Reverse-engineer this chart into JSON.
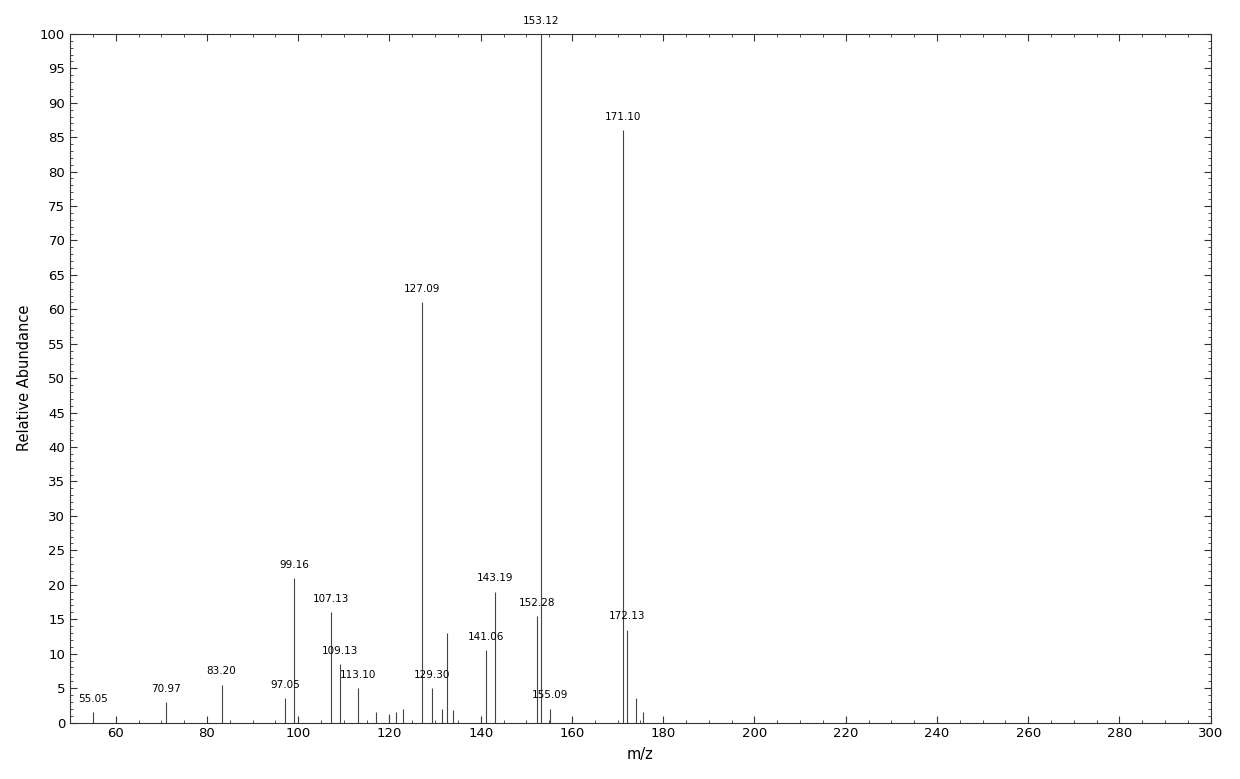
{
  "peaks": [
    {
      "mz": 55.05,
      "intensity": 1.5
    },
    {
      "mz": 70.97,
      "intensity": 3.0
    },
    {
      "mz": 83.2,
      "intensity": 5.5
    },
    {
      "mz": 97.05,
      "intensity": 3.5
    },
    {
      "mz": 99.16,
      "intensity": 21.0
    },
    {
      "mz": 107.13,
      "intensity": 16.0
    },
    {
      "mz": 109.13,
      "intensity": 8.5
    },
    {
      "mz": 113.1,
      "intensity": 5.0
    },
    {
      "mz": 117.0,
      "intensity": 1.5
    },
    {
      "mz": 120.0,
      "intensity": 1.2
    },
    {
      "mz": 121.5,
      "intensity": 1.5
    },
    {
      "mz": 123.0,
      "intensity": 2.0
    },
    {
      "mz": 127.09,
      "intensity": 61.0
    },
    {
      "mz": 129.3,
      "intensity": 5.0
    },
    {
      "mz": 131.5,
      "intensity": 2.0
    },
    {
      "mz": 132.5,
      "intensity": 13.0
    },
    {
      "mz": 134.0,
      "intensity": 1.8
    },
    {
      "mz": 141.06,
      "intensity": 10.5
    },
    {
      "mz": 143.19,
      "intensity": 19.0
    },
    {
      "mz": 152.28,
      "intensity": 15.5
    },
    {
      "mz": 153.12,
      "intensity": 100.0
    },
    {
      "mz": 155.09,
      "intensity": 2.0
    },
    {
      "mz": 171.1,
      "intensity": 86.0
    },
    {
      "mz": 172.13,
      "intensity": 13.5
    },
    {
      "mz": 174.0,
      "intensity": 3.5
    },
    {
      "mz": 175.5,
      "intensity": 1.5
    }
  ],
  "labeled_peaks": [
    {
      "mz": 55.05,
      "intensity": 1.5,
      "label": "55.05"
    },
    {
      "mz": 70.97,
      "intensity": 3.0,
      "label": "70.97"
    },
    {
      "mz": 83.2,
      "intensity": 5.5,
      "label": "83.20"
    },
    {
      "mz": 97.05,
      "intensity": 3.5,
      "label": "97.05"
    },
    {
      "mz": 99.16,
      "intensity": 21.0,
      "label": "99.16"
    },
    {
      "mz": 107.13,
      "intensity": 16.0,
      "label": "107.13"
    },
    {
      "mz": 109.13,
      "intensity": 8.5,
      "label": "109.13"
    },
    {
      "mz": 113.1,
      "intensity": 5.0,
      "label": "113.10"
    },
    {
      "mz": 127.09,
      "intensity": 61.0,
      "label": "127.09"
    },
    {
      "mz": 129.3,
      "intensity": 5.0,
      "label": "129.30"
    },
    {
      "mz": 141.06,
      "intensity": 10.5,
      "label": "141.06"
    },
    {
      "mz": 143.19,
      "intensity": 19.0,
      "label": "143.19"
    },
    {
      "mz": 152.28,
      "intensity": 15.5,
      "label": "152.28"
    },
    {
      "mz": 153.12,
      "intensity": 100.0,
      "label": "153.12"
    },
    {
      "mz": 155.09,
      "intensity": 2.0,
      "label": "155.09"
    },
    {
      "mz": 171.1,
      "intensity": 86.0,
      "label": "171.10"
    },
    {
      "mz": 172.13,
      "intensity": 13.5,
      "label": "172.13"
    }
  ],
  "xmin": 50,
  "xmax": 300,
  "ymin": 0,
  "ymax": 100,
  "xlabel": "m/z",
  "ylabel": "Relative Abundance",
  "line_color": "#444444",
  "background_color": "#ffffff",
  "tick_label_fontsize": 9.5,
  "axis_label_fontsize": 10.5,
  "annotation_fontsize": 7.5,
  "x_major_tick_interval": 20,
  "x_minor_tick_interval": 5,
  "y_major_tick_interval": 5,
  "y_minor_tick_interval": 1,
  "xticks": [
    60,
    80,
    100,
    120,
    140,
    160,
    180,
    200,
    220,
    240,
    260,
    280
  ]
}
